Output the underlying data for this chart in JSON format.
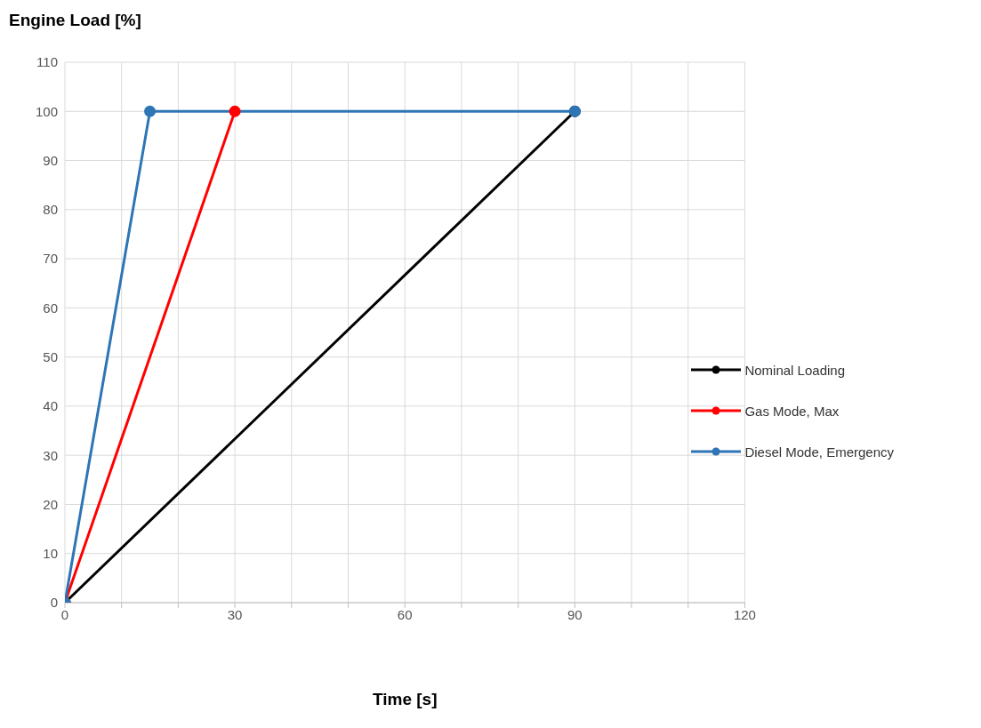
{
  "chart_data": {
    "type": "line",
    "ylabel": "Engine Load [%]",
    "xlabel": "Time [s]",
    "xlim": [
      0,
      120
    ],
    "xticks": [
      0,
      {
        "value": 10,
        "label": null
      },
      {
        "value": 20,
        "label": null
      },
      30,
      {
        "value": 40,
        "label": null
      },
      {
        "value": 50,
        "label": null
      },
      60,
      {
        "value": 70,
        "label": null
      },
      {
        "value": 80,
        "label": null
      },
      90,
      {
        "value": 100,
        "label": null
      },
      {
        "value": 110,
        "label": null
      },
      120
    ],
    "ylim": [
      0,
      110
    ],
    "yticks": [
      0,
      10,
      20,
      30,
      40,
      50,
      60,
      70,
      80,
      90,
      100,
      110
    ],
    "grid": true,
    "legend": "right",
    "marker": "circle",
    "line_style": "solid",
    "series": [
      {
        "name": "Nominal Loading",
        "color": "#000000",
        "x": [
          0,
          90
        ],
        "values": [
          0,
          100
        ]
      },
      {
        "name": "Gas Mode, Max",
        "color": "#ff0000",
        "x": [
          0,
          30
        ],
        "values": [
          0,
          100
        ]
      },
      {
        "name": "Diesel Mode, Emergency",
        "color": "#2e75b6",
        "x": [
          0,
          15,
          90
        ],
        "values": [
          0,
          100,
          100
        ]
      }
    ]
  }
}
